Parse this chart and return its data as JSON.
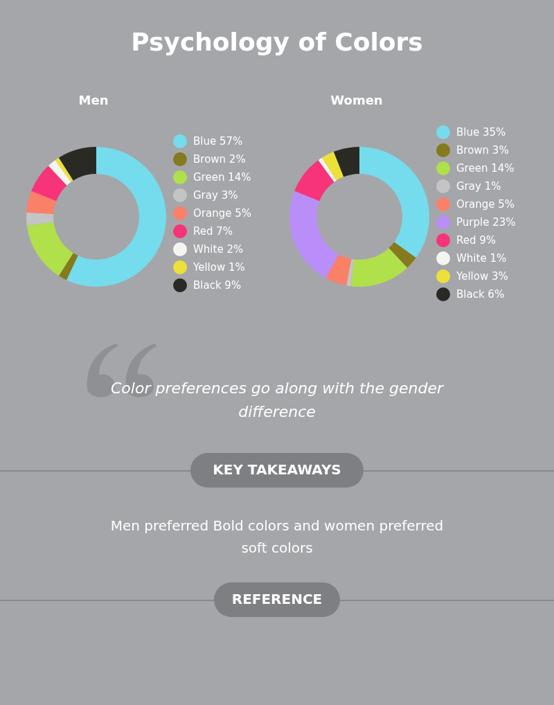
{
  "chart_data": [
    {
      "type": "other",
      "title": "Psychology of Colors"
    },
    {
      "type": "donut",
      "title": "Men",
      "legend": "right",
      "categories": [
        "Blue",
        "Brown",
        "Green",
        "Gray",
        "Orange",
        "Red",
        "White",
        "Yellow",
        "Black"
      ],
      "values": [
        57,
        2,
        14,
        3,
        5,
        7,
        2,
        1,
        9
      ],
      "value_labels": [
        "57%",
        "2%",
        "14%",
        "3%",
        "5%",
        "7%",
        "2%",
        "1%",
        "9%"
      ],
      "colors": [
        "#74dcec",
        "#857a1e",
        "#b0e04a",
        "#c4c4c4",
        "#fa8068",
        "#f7337a",
        "#f5f5f0",
        "#ede03a",
        "#2a2a25"
      ]
    },
    {
      "type": "donut",
      "title": "Women",
      "legend": "right",
      "categories": [
        "Blue",
        "Brown",
        "Green",
        "Gray",
        "Orange",
        "Purple",
        "Red",
        "White",
        "Yellow",
        "Black"
      ],
      "values": [
        35,
        3,
        14,
        1,
        5,
        23,
        9,
        1,
        3,
        6
      ],
      "value_labels": [
        "35%",
        "3%",
        "14%",
        "1%",
        "5%",
        "23%",
        "9%",
        "1%",
        "3%",
        "6%"
      ],
      "colors": [
        "#74dcec",
        "#857a1e",
        "#b0e04a",
        "#c4c4c4",
        "#fa8068",
        "#b98ef9",
        "#f7337a",
        "#f5f5f0",
        "#ede03a",
        "#2a2a25"
      ]
    },
    {
      "type": "other",
      "annotations": [
        "Color preferences go along with the gender difference",
        "KEY TAKEAWAYS",
        "Men preferred Bold colors and women preferred soft colors",
        "REFERENCE"
      ]
    }
  ]
}
